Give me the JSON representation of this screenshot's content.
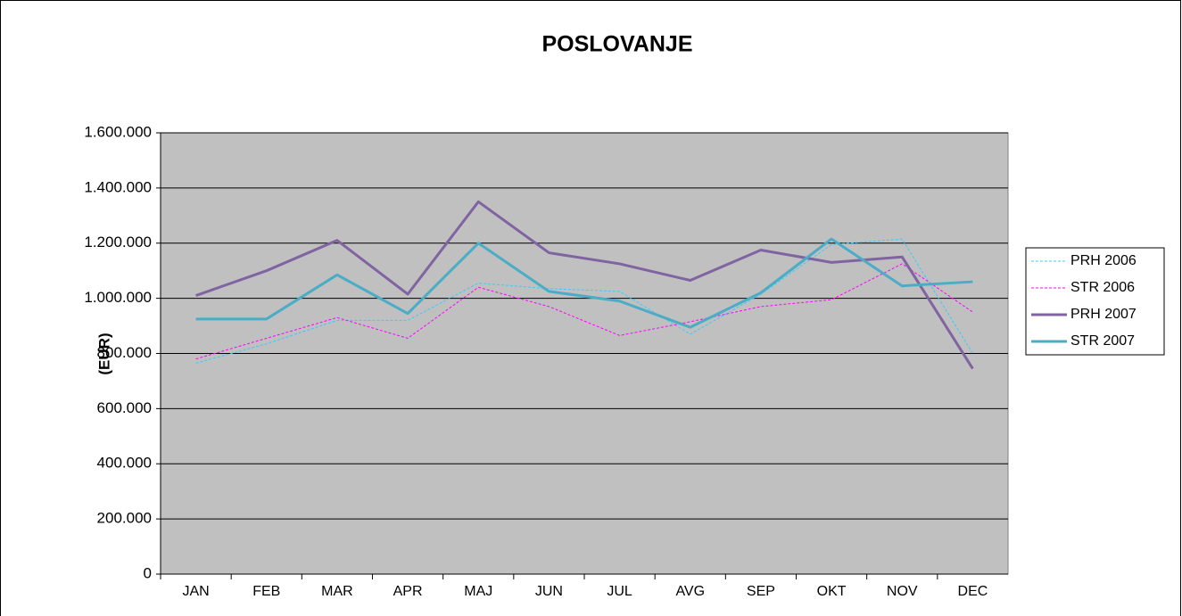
{
  "chart_data": {
    "type": "line",
    "title": "POSLOVANJE",
    "y_label": "(EUR)",
    "categories": [
      "JAN",
      "FEB",
      "MAR",
      "APR",
      "MAJ",
      "JUN",
      "JUL",
      "AVG",
      "SEP",
      "OKT",
      "NOV",
      "DEC"
    ],
    "series": [
      {
        "name": "PRH 2006",
        "color": "#33ccff",
        "dashed": true,
        "values": [
          765000,
          835000,
          920000,
          920000,
          1055000,
          1035000,
          1025000,
          870000,
          1015000,
          1195000,
          1215000,
          800000
        ]
      },
      {
        "name": "STR 2006",
        "color": "#ff00ff",
        "dashed": true,
        "values": [
          780000,
          855000,
          930000,
          855000,
          1040000,
          970000,
          865000,
          915000,
          970000,
          995000,
          1125000,
          950000
        ]
      },
      {
        "name": "PRH 2007",
        "color": "#8064a2",
        "dashed": false,
        "values": [
          1010000,
          1100000,
          1210000,
          1015000,
          1350000,
          1165000,
          1125000,
          1065000,
          1175000,
          1130000,
          1150000,
          745000
        ]
      },
      {
        "name": "STR 2007",
        "color": "#4bacc6",
        "dashed": false,
        "values": [
          925000,
          925000,
          1085000,
          945000,
          1200000,
          1025000,
          990000,
          895000,
          1020000,
          1215000,
          1045000,
          1060000
        ]
      }
    ],
    "ylim": [
      0,
      1600000
    ],
    "yticks": [
      0,
      {
        "value": 200000,
        "label": "200.000"
      },
      {
        "value": 400000,
        "label": "400.000"
      },
      {
        "value": 600000,
        "label": "600.000"
      },
      {
        "value": 800000,
        "label": "800.000"
      },
      {
        "value": 1000000,
        "label": "1.000.000"
      },
      {
        "value": 1200000,
        "label": "1.200.000"
      },
      {
        "value": 1400000,
        "label": "1.400.000"
      },
      {
        "value": 1600000,
        "label": "1.600.000"
      }
    ],
    "grid": true,
    "legend": "right",
    "plot_background": "#c0c0c0"
  }
}
